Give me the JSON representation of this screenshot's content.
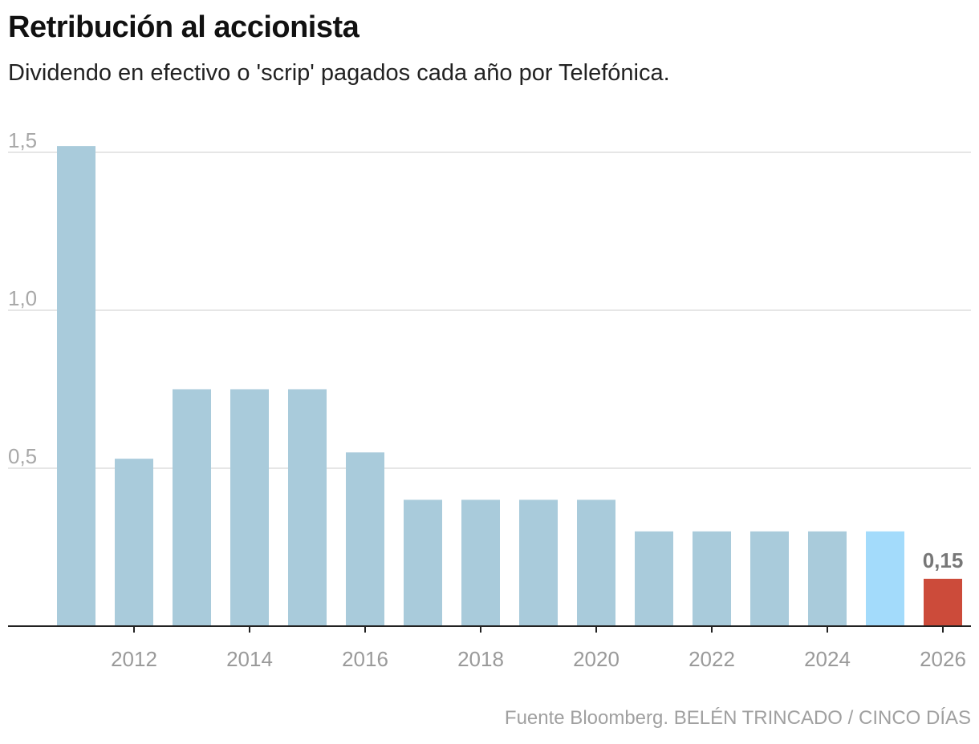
{
  "header": {
    "title": "Retribución al accionista",
    "subtitle": "Dividendo en efectivo o 'scrip' pagados cada año por Telefónica."
  },
  "footer": {
    "source": "Fuente Bloomberg. BELÉN TRINCADO / CINCO DÍAS"
  },
  "colors": {
    "bar": "#a9cbdb",
    "bar_highlight_light": "#a3dbfb",
    "bar_highlight_red": "#cc4b3a",
    "gridline": "#dddddd",
    "baseline": "#222222"
  },
  "chart_data": {
    "type": "bar",
    "title": "Retribución al accionista",
    "subtitle": "Dividendo en efectivo o 'scrip' pagados cada año por Telefónica.",
    "xlabel": "",
    "ylabel": "",
    "categories": [
      2011,
      2012,
      2013,
      2014,
      2015,
      2016,
      2017,
      2018,
      2019,
      2020,
      2021,
      2022,
      2023,
      2024,
      2025,
      2026
    ],
    "values": [
      1.52,
      0.53,
      0.75,
      0.75,
      0.75,
      0.55,
      0.4,
      0.4,
      0.4,
      0.4,
      0.3,
      0.3,
      0.3,
      0.3,
      0.3,
      0.15
    ],
    "bar_colors": [
      "bar",
      "bar",
      "bar",
      "bar",
      "bar",
      "bar",
      "bar",
      "bar",
      "bar",
      "bar",
      "bar",
      "bar",
      "bar",
      "bar",
      "bar_highlight_light",
      "bar_highlight_red"
    ],
    "ylim": [
      0,
      1.5
    ],
    "yticks": [
      0.5,
      1.0,
      1.5
    ],
    "ytick_labels": [
      "0,5",
      "1,0",
      "1,5"
    ],
    "xticks": [
      2012,
      2014,
      2016,
      2018,
      2020,
      2022,
      2024,
      2026
    ],
    "xtick_labels": [
      "2012",
      "2014",
      "2016",
      "2018",
      "2020",
      "2022",
      "2024",
      "2026"
    ],
    "annotations": [
      {
        "category": 2026,
        "text": "0,15"
      }
    ],
    "grid": true
  }
}
